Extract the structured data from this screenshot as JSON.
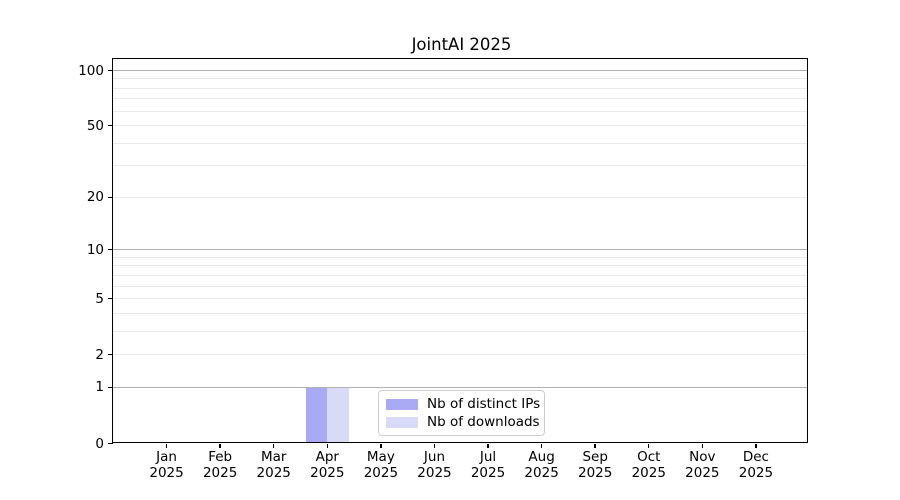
{
  "chart_data": {
    "type": "bar",
    "title": "JointAI 2025",
    "categories": [
      {
        "month": "Jan",
        "year": "2025"
      },
      {
        "month": "Feb",
        "year": "2025"
      },
      {
        "month": "Mar",
        "year": "2025"
      },
      {
        "month": "Apr",
        "year": "2025"
      },
      {
        "month": "May",
        "year": "2025"
      },
      {
        "month": "Jun",
        "year": "2025"
      },
      {
        "month": "Jul",
        "year": "2025"
      },
      {
        "month": "Aug",
        "year": "2025"
      },
      {
        "month": "Sep",
        "year": "2025"
      },
      {
        "month": "Oct",
        "year": "2025"
      },
      {
        "month": "Nov",
        "year": "2025"
      },
      {
        "month": "Dec",
        "year": "2025"
      }
    ],
    "series": [
      {
        "name": "Nb of distinct IPs",
        "color": "#aaaaf4",
        "values": [
          0,
          0,
          0,
          1,
          0,
          0,
          0,
          0,
          0,
          0,
          0,
          0
        ]
      },
      {
        "name": "Nb of downloads",
        "color": "#d9d9f8",
        "values": [
          0,
          0,
          0,
          1,
          0,
          0,
          0,
          0,
          0,
          0,
          0,
          0
        ]
      }
    ],
    "xlabel": "",
    "ylabel": "",
    "yscale": "symlog",
    "ylim": [
      0,
      116
    ],
    "ytick_values": [
      0,
      1,
      2,
      5,
      10,
      20,
      50,
      100
    ],
    "ytick_labels": [
      "0",
      "1",
      "2",
      "5",
      "10",
      "20",
      "50",
      "100"
    ],
    "major_gridline_values": [
      1,
      10,
      100
    ],
    "minor_gridline_values": [
      2,
      3,
      4,
      5,
      6,
      7,
      8,
      9,
      20,
      30,
      40,
      50,
      60,
      70,
      80,
      90
    ],
    "grid": "horizontal, major and minor",
    "legend_position": "lower center",
    "colors": {
      "grid_major": "#b0b0b0",
      "grid_minor": "#e9e9e9",
      "spine": "#000000",
      "text": "#000000",
      "legend_border": "#cccccc",
      "legend_background": "#ffffff"
    }
  }
}
